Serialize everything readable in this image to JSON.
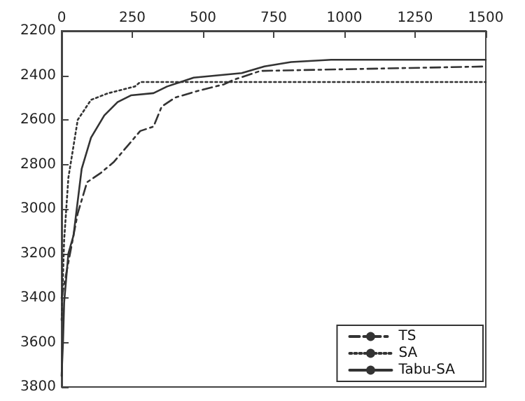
{
  "chart_data": {
    "type": "line",
    "xlim": [
      0,
      1500
    ],
    "xticks": [
      0,
      250,
      500,
      750,
      1000,
      1250,
      1500
    ],
    "ylim": [
      3800,
      2200
    ],
    "yticks": [
      2200,
      2400,
      2600,
      2800,
      3000,
      3200,
      3400,
      3600,
      3800
    ],
    "grid": false,
    "legend": "bottom right",
    "marker": "none",
    "series": [
      {
        "name": "TS",
        "color": "#333333",
        "line_style": "dashed",
        "x": [
          0,
          57,
          90,
          137,
          184,
          231,
          278,
          325,
          354,
          401,
          481,
          575,
          608,
          703,
          1500
        ],
        "values": [
          3400,
          3020,
          2880,
          2840,
          2790,
          2720,
          2650,
          2630,
          2540,
          2500,
          2470,
          2440,
          2420,
          2380,
          2360
        ]
      },
      {
        "name": "SA",
        "color": "#333333",
        "line_style": "dotted",
        "x": [
          0,
          9,
          24,
          57,
          104,
          165,
          259,
          278,
          1500
        ],
        "values": [
          3500,
          3140,
          2860,
          2600,
          2510,
          2480,
          2450,
          2430,
          2430
        ]
      },
      {
        "name": "Tabu-SA",
        "color": "#333333",
        "line_style": "solid",
        "x": [
          0,
          5,
          9,
          24,
          42,
          71,
          104,
          151,
          198,
          245,
          325,
          373,
          467,
          637,
          717,
          811,
          953,
          1500
        ],
        "values": [
          3750,
          3600,
          3420,
          3200,
          3120,
          2820,
          2680,
          2580,
          2520,
          2490,
          2480,
          2450,
          2410,
          2390,
          2360,
          2340,
          2330,
          2330
        ]
      }
    ]
  }
}
